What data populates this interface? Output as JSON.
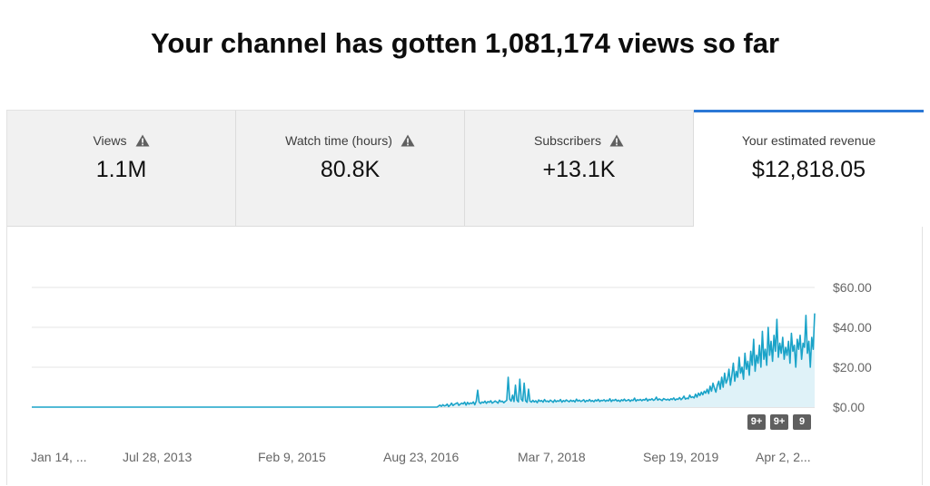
{
  "headline": "Your channel has gotten 1,081,174 views so far",
  "tabs": [
    {
      "title": "Views",
      "value": "1.1M",
      "warning": true,
      "icon": "warning-icon"
    },
    {
      "title": "Watch time (hours)",
      "value": "80.8K",
      "warning": true,
      "icon": "warning-icon"
    },
    {
      "title": "Subscribers",
      "value": "+13.1K",
      "warning": true,
      "icon": "warning-icon"
    },
    {
      "title": "Your estimated revenue",
      "value": "$12,818.05",
      "warning": false,
      "active": true
    }
  ],
  "badges": [
    "9+",
    "9+",
    "9"
  ],
  "colors": {
    "accent": "#2b78d6",
    "line": "#1aa3c8",
    "fill": "#dff2f8"
  },
  "chart_data": {
    "type": "area",
    "xlabel": "",
    "ylabel": "",
    "y_axis_side": "right",
    "ylim": [
      0,
      60
    ],
    "y_ticks": [
      {
        "value": 0,
        "label": "$0.00"
      },
      {
        "value": 20,
        "label": "$20.00"
      },
      {
        "value": 40,
        "label": "$40.00"
      },
      {
        "value": 60,
        "label": "$60.00"
      }
    ],
    "x_ticks": [
      "Jan 14, ...",
      "Jul 28, 2013",
      "Feb 9, 2015",
      "Aug 23, 2016",
      "Mar 7, 2018",
      "Sep 19, 2019",
      "Apr 2, 2..."
    ],
    "grid": true,
    "series": [
      {
        "values": [
          0,
          0,
          0,
          0,
          0,
          0,
          0,
          0,
          0,
          0,
          0,
          0,
          0,
          0,
          0,
          0,
          0,
          0,
          0,
          0,
          0,
          0,
          0,
          0,
          0,
          0,
          0,
          0,
          0,
          0,
          0,
          0,
          0,
          0,
          0,
          0,
          0,
          0,
          0,
          0,
          0,
          0,
          0,
          0,
          0,
          0,
          0,
          0,
          0,
          0,
          0,
          0,
          0,
          0,
          0,
          0,
          0,
          0,
          0,
          0,
          0,
          0,
          0,
          0,
          0,
          0,
          0,
          0,
          0,
          0,
          0,
          0,
          0,
          0,
          0,
          0,
          0,
          0,
          0,
          0,
          0,
          0,
          0,
          0,
          0,
          0,
          0,
          0,
          0,
          0,
          0,
          0,
          0,
          0,
          0,
          0,
          0,
          0,
          0,
          0,
          0,
          0,
          0,
          0,
          0,
          0,
          0,
          0,
          0,
          0,
          0,
          0,
          0,
          0,
          0,
          0,
          0,
          0,
          0,
          0,
          0,
          0,
          0,
          0,
          0,
          0,
          0,
          0,
          0,
          0,
          0,
          0,
          0,
          0,
          0,
          0,
          0,
          0,
          0,
          0,
          0,
          0,
          0,
          0,
          0,
          0,
          0,
          0,
          0,
          0,
          0,
          0,
          0,
          0,
          0,
          0,
          0,
          0,
          0,
          0,
          0,
          0,
          0,
          0,
          0,
          0,
          0,
          0,
          0,
          0,
          0,
          0,
          0,
          0,
          0,
          0,
          0,
          0,
          0,
          0,
          0,
          0,
          0,
          0,
          0,
          0,
          0,
          0,
          0,
          0,
          0,
          0,
          0,
          0,
          0,
          0,
          0,
          0,
          0,
          0,
          0,
          0,
          0,
          0,
          0,
          0,
          0,
          0,
          0,
          0,
          0,
          0,
          0,
          0,
          0,
          0,
          0,
          0,
          0,
          0,
          0,
          0,
          0,
          0,
          0,
          0,
          0,
          0,
          0,
          0,
          0,
          0,
          0,
          0,
          0,
          0,
          0,
          0,
          0,
          0,
          0,
          0,
          0,
          0,
          0,
          0,
          0,
          0,
          0,
          0,
          0,
          0,
          0,
          0,
          0,
          0,
          0,
          0,
          0,
          0,
          0,
          0,
          0,
          0,
          0,
          0,
          0,
          0,
          0,
          0,
          0,
          0,
          0,
          0,
          0,
          0,
          0,
          0,
          0,
          0,
          0.5,
          1,
          0.4,
          1.2,
          0.6,
          0.8,
          1.5,
          0.3,
          1,
          2,
          0.8,
          1.4,
          1.8,
          2.2,
          0.9,
          1.5,
          2,
          1.6,
          2.5,
          1,
          2.4,
          1.5,
          2.1,
          1.8,
          2.6,
          1.2,
          3,
          8.5,
          2.5,
          1.8,
          2.6,
          2.2,
          3,
          1.9,
          2.8,
          2.4,
          3.2,
          2,
          2.5,
          3.1,
          2.6,
          2,
          3.5,
          2.7,
          3,
          2.2,
          2.9,
          3.4,
          15,
          4,
          3,
          6,
          2.8,
          11,
          3.5,
          2.6,
          14,
          4,
          3,
          12,
          3.2,
          2.4,
          9,
          3,
          2.5,
          3.4,
          2.6,
          3.2,
          2.2,
          3.6,
          2.9,
          3.3,
          2.5,
          3.8,
          2.8,
          3.1,
          2.6,
          3.5,
          3,
          2.4,
          3.6,
          2.7,
          3.2,
          2.9,
          3.8,
          2.5,
          3.3,
          2.8,
          3.6,
          3.1,
          2.7,
          3.5,
          2.9,
          3.3,
          2.6,
          4,
          3,
          3.5,
          2.8,
          3.2,
          3.7,
          2.6,
          3.4,
          3,
          3.8,
          2.9,
          3.3,
          2.7,
          3.6,
          3.1,
          3.9,
          2.8,
          3.4,
          3.2,
          3.7,
          2.9,
          3.5,
          3.1,
          4.2,
          2.8,
          3.6,
          3.3,
          3.9,
          3,
          3.5,
          2.8,
          3.7,
          3.2,
          4,
          3.1,
          3.4,
          3.8,
          2.9,
          3.6,
          3.3,
          4.5,
          3,
          3.7,
          3.4,
          3.9,
          3.2,
          3.8,
          3.5,
          4.4,
          3.1,
          3.9,
          3.6,
          4.2,
          3.4,
          3.8,
          5,
          3.5,
          4.1,
          3.7,
          3.3,
          4.3,
          3.9,
          3.6,
          4,
          3.4,
          4.2,
          3.8,
          4.6,
          3.5,
          4.1,
          3.9,
          4.8,
          3.7,
          4.4,
          5.5,
          4,
          4.5,
          4.2,
          6,
          4.8,
          5.2,
          4.6,
          6.5,
          5,
          7,
          5.8,
          7.5,
          6.2,
          8,
          7,
          9,
          6.8,
          10.5,
          8,
          12,
          9.5,
          7.5,
          11,
          13,
          9,
          15,
          10,
          17,
          12,
          14,
          19,
          11,
          16,
          22,
          13,
          18,
          15,
          25,
          17,
          20,
          14,
          27,
          19,
          23,
          16,
          28,
          21,
          34,
          18,
          26,
          22,
          31,
          20,
          38,
          24,
          29,
          21,
          40,
          26,
          33,
          23,
          36,
          28,
          44,
          25,
          32,
          27,
          35,
          24,
          30,
          26,
          33,
          22,
          37,
          28,
          31,
          20,
          34,
          29,
          36,
          24,
          32,
          30,
          46,
          27,
          33,
          20,
          35,
          29,
          47
        ]
      }
    ]
  }
}
